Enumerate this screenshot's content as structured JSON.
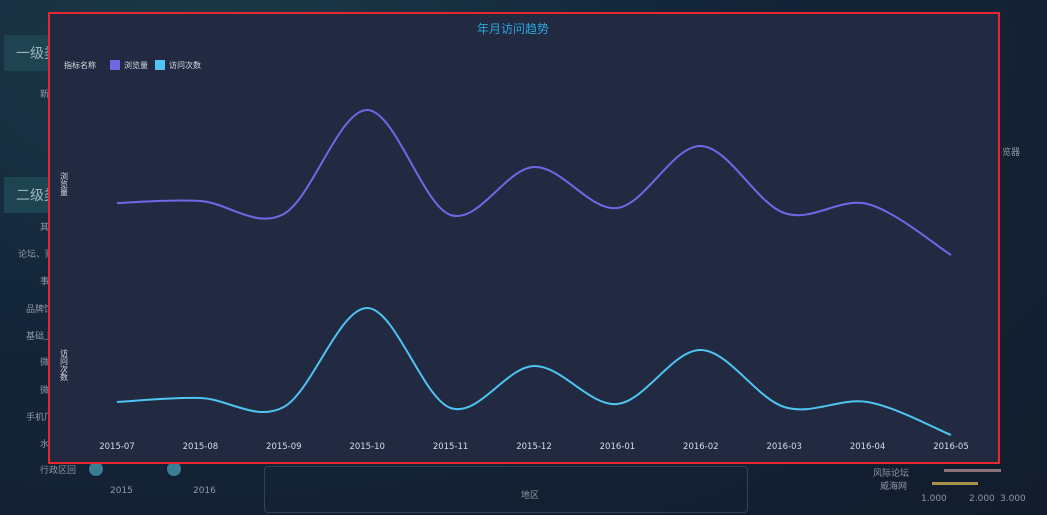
{
  "background": {
    "left_headers": [
      "一级类",
      "二级类"
    ],
    "left_labels": [
      "新",
      "其",
      "论坛、贴",
      "事",
      "品牌馆",
      "基础上",
      "微",
      "微",
      "手机厂",
      "水",
      "行政区回"
    ],
    "slider_years": [
      "2015",
      "2016"
    ],
    "bottom_axis_label": "地区",
    "right_labels": [
      "风际论坛",
      "威海网",
      "览器"
    ],
    "right_ticks": [
      "1.000",
      "2.000",
      "3.000"
    ]
  },
  "chart_data": {
    "type": "line",
    "title": "年月访问趋势",
    "legend_title": "指标名称",
    "legend_position": "top-left",
    "grid": false,
    "categories": [
      "2015-07",
      "2015-08",
      "2015-09",
      "2015-10",
      "2015-11",
      "2015-12",
      "2016-01",
      "2016-02",
      "2016-03",
      "2016-04",
      "2016-05"
    ],
    "series": [
      {
        "name": "浏览量",
        "ylabel": "浏览量",
        "color": "#7366e6",
        "smooth": true,
        "values": [
          59,
          61,
          48,
          152,
          47,
          95,
          54,
          116,
          49,
          58,
          7
        ]
      },
      {
        "name": "访问次数",
        "ylabel": "访问次数",
        "color": "#4fc3f1",
        "smooth": true,
        "values": [
          40,
          44,
          35,
          134,
          34,
          76,
          38,
          92,
          35,
          40,
          7
        ]
      }
    ],
    "note_values": "relative; no y-axis ticks printed"
  }
}
